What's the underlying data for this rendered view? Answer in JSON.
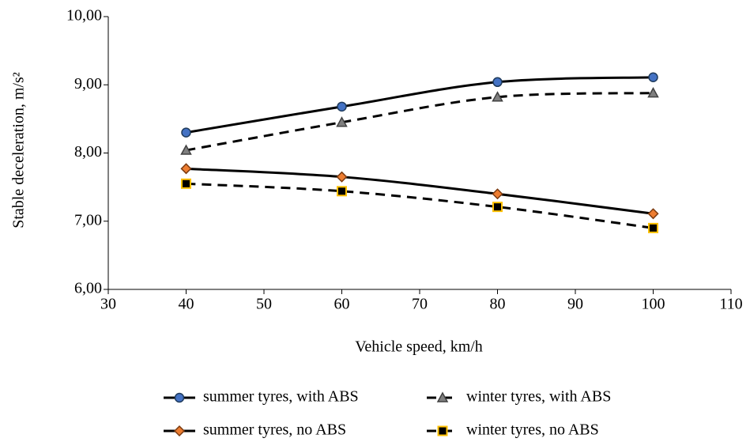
{
  "chart_data": {
    "type": "line",
    "x_label": "Vehicle speed, km/h",
    "y_label": "Stable deceleration, m/s²",
    "x": [
      40,
      60,
      80,
      100
    ],
    "series": [
      {
        "name": "summer tyres, with ABS",
        "color": "#000000",
        "line_style": "solid",
        "marker": "circle",
        "marker_color": "#4472c4",
        "marker_edge": "#1f3b5c",
        "values": [
          8.3,
          8.68,
          9.04,
          9.11
        ]
      },
      {
        "name": "winter tyres, with ABS",
        "color": "#000000",
        "line_style": "dashed",
        "marker": "triangle",
        "marker_color": "#7f7f7f",
        "marker_edge": "#404040",
        "values": [
          8.04,
          8.45,
          8.82,
          8.88
        ]
      },
      {
        "name": "summer tyres, no ABS",
        "color": "#000000",
        "line_style": "solid",
        "marker": "diamond",
        "marker_color": "#ed7d31",
        "marker_edge": "#7a3a10",
        "values": [
          7.77,
          7.65,
          7.4,
          7.11
        ]
      },
      {
        "name": "winter tyres, no ABS",
        "color": "#000000",
        "line_style": "dashed",
        "marker": "square",
        "marker_color": "#000000",
        "marker_edge": "#ffc000",
        "values": [
          7.55,
          7.44,
          7.21,
          6.9
        ]
      }
    ],
    "xlim": [
      30,
      110
    ],
    "xticks": [
      30,
      40,
      50,
      60,
      70,
      80,
      90,
      100,
      110
    ],
    "ylim": [
      6,
      10
    ],
    "yticks": [
      {
        "value": 6,
        "label": "6,00"
      },
      {
        "value": 7,
        "label": "7,00"
      },
      {
        "value": 8,
        "label": "8,00"
      },
      {
        "value": 9,
        "label": "9,00"
      },
      {
        "value": 10,
        "label": "10,00"
      }
    ],
    "grid": false,
    "smooth": true,
    "legend": "bottom"
  }
}
